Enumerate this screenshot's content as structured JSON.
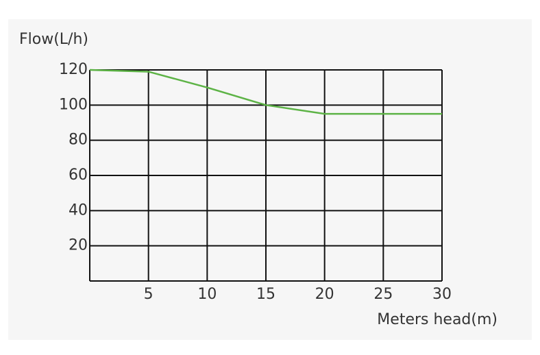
{
  "chart_data": {
    "type": "line",
    "x_label": "Meters head(m)",
    "y_label": "Flow(L/h)",
    "x": [
      0,
      5,
      10,
      15,
      20,
      25,
      30
    ],
    "values": [
      120,
      119,
      110,
      100,
      95,
      95,
      95
    ],
    "color": "#5db346",
    "xlim": [
      0,
      30
    ],
    "xticks": [
      5,
      10,
      15,
      20,
      25,
      30
    ],
    "ylim": [
      0,
      120
    ],
    "yticks": [
      20,
      40,
      60,
      80,
      100,
      120
    ],
    "grid": true
  }
}
